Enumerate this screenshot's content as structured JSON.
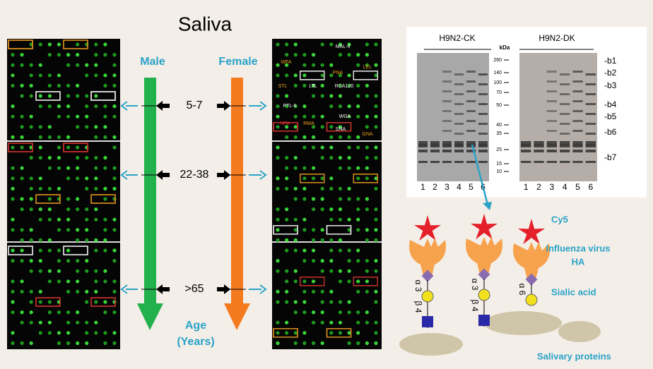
{
  "title": "Saliva",
  "groups": {
    "male": "Male",
    "female": "Female"
  },
  "age_axis": {
    "label": "Age",
    "unit": "(Years)",
    "groups": [
      "5-7",
      "22-38",
      ">65"
    ]
  },
  "lectins": [
    "MAL-II",
    "WFA",
    "PNA",
    "LEL",
    "STL",
    "LTL",
    "RCA120",
    "PTL-II",
    "WGA",
    "NPA",
    "RMA",
    "SNA",
    "GNA"
  ],
  "blot": {
    "samples": [
      "H9N2-CK",
      "H9N2-DK"
    ],
    "unit": "kDa",
    "markers": [
      "260",
      "140",
      "100",
      "70",
      "50",
      "40",
      "35",
      "25",
      "15",
      "10"
    ],
    "bands": [
      "-b1",
      "-b2",
      "-b3",
      "-b4",
      "-b5",
      "-b6",
      "-b7"
    ],
    "lanes": [
      "1",
      "2",
      "3",
      "4",
      "5",
      "6"
    ]
  },
  "diagram": {
    "dye": "Cy5",
    "protein": [
      "Influenza virus",
      "HA"
    ],
    "glycan": "Sialic acid",
    "substrate": "Salivary proteins",
    "linkages": [
      [
        "α 3",
        "β 4"
      ],
      [
        "α 3",
        "β 4"
      ],
      [
        "α 6"
      ]
    ]
  }
}
